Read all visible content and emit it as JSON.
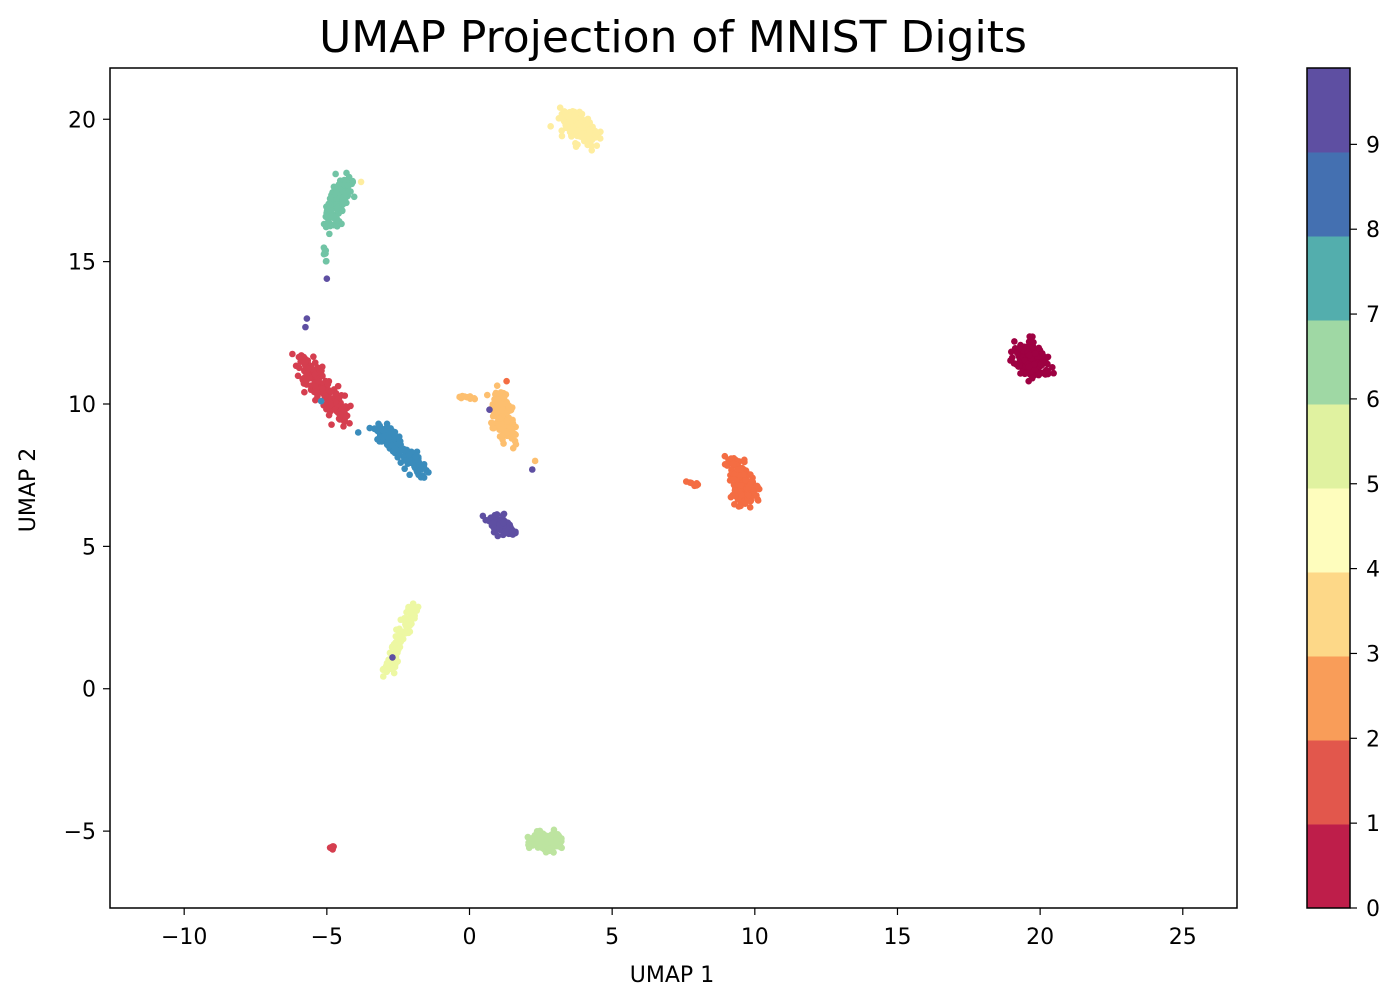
{
  "chart_data": {
    "type": "scatter",
    "title": "UMAP Projection of MNIST Digits",
    "xlabel": "UMAP 1",
    "ylabel": "UMAP 2",
    "xlim": [
      -12.6,
      26.9
    ],
    "ylim": [
      -7.7,
      21.8
    ],
    "xticks": [
      -10,
      -5,
      0,
      5,
      10,
      15,
      20,
      25
    ],
    "xtick_labels": [
      "−10",
      "−5",
      "0",
      "5",
      "10",
      "15",
      "20",
      "25"
    ],
    "yticks": [
      -5,
      0,
      5,
      10,
      15,
      20
    ],
    "ytick_labels": [
      "−5",
      "0",
      "5",
      "10",
      "15",
      "20"
    ],
    "grid": false,
    "colormap": "Spectral",
    "colorbar": {
      "ticks": [
        0,
        1,
        2,
        3,
        4,
        5,
        6,
        7,
        8,
        9
      ],
      "tick_labels": [
        "0",
        "1",
        "2",
        "3",
        "4",
        "5",
        "6",
        "7",
        "8",
        "9"
      ],
      "range": [
        0,
        9.9
      ],
      "band_colors": [
        "#be1e4a",
        "#e2574c",
        "#f99d59",
        "#fdd888",
        "#fefdbd",
        "#e0f2a0",
        "#9fd8a4",
        "#53aead",
        "#4470b1",
        "#5e4fa2"
      ]
    },
    "label_colors": [
      "#9e0142",
      "#d53e4f",
      "#f46d43",
      "#fdbf6f",
      "#feed9f",
      "#edf8a3",
      "#bde4a0",
      "#71c4a5",
      "#3a8cbc",
      "#5e4fa2"
    ],
    "clusters": [
      {
        "label": 0,
        "from": [
          19.5,
          11.9
        ],
        "to": [
          19.9,
          11.2
        ],
        "spread": [
          0.45,
          0.35
        ],
        "n": 220
      },
      {
        "label": 1,
        "from": [
          -5.9,
          11.6
        ],
        "to": [
          -4.4,
          9.5
        ],
        "spread": [
          0.3,
          0.3
        ],
        "n": 160
      },
      {
        "label": 1,
        "from": [
          -4.95,
          -5.7
        ],
        "to": [
          -4.75,
          -5.5
        ],
        "spread": [
          0.05,
          0.05
        ],
        "n": 8
      },
      {
        "label": 2,
        "from": [
          9.3,
          8.0
        ],
        "to": [
          9.7,
          6.6
        ],
        "spread": [
          0.35,
          0.25
        ],
        "n": 150
      },
      {
        "label": 2,
        "from": [
          7.6,
          7.25
        ],
        "to": [
          8.0,
          7.15
        ],
        "spread": [
          0.05,
          0.05
        ],
        "n": 8
      },
      {
        "label": 3,
        "from": [
          1.0,
          10.3
        ],
        "to": [
          1.3,
          8.9
        ],
        "spread": [
          0.3,
          0.3
        ],
        "n": 150
      },
      {
        "label": 3,
        "from": [
          -0.4,
          10.3
        ],
        "to": [
          0.2,
          10.2
        ],
        "spread": [
          0.05,
          0.06
        ],
        "n": 10
      },
      {
        "label": 4,
        "from": [
          3.4,
          20.1
        ],
        "to": [
          4.3,
          19.3
        ],
        "spread": [
          0.35,
          0.3
        ],
        "n": 180
      },
      {
        "label": 5,
        "from": [
          -1.9,
          3.0
        ],
        "to": [
          -2.9,
          0.6
        ],
        "spread": [
          0.2,
          0.15
        ],
        "n": 120
      },
      {
        "label": 6,
        "from": [
          2.3,
          -5.4
        ],
        "to": [
          3.1,
          -5.4
        ],
        "spread": [
          0.3,
          0.25
        ],
        "n": 160
      },
      {
        "label": 7,
        "from": [
          -4.3,
          17.8
        ],
        "to": [
          -4.9,
          16.4
        ],
        "spread": [
          0.25,
          0.3
        ],
        "n": 150
      },
      {
        "label": 7,
        "from": [
          -5.1,
          15.6
        ],
        "to": [
          -5.0,
          14.7
        ],
        "spread": [
          0.05,
          0.1
        ],
        "n": 10
      },
      {
        "label": 8,
        "from": [
          -3.2,
          9.2
        ],
        "to": [
          -1.6,
          7.6
        ],
        "spread": [
          0.25,
          0.25
        ],
        "n": 150
      },
      {
        "label": 9,
        "from": [
          0.8,
          5.9
        ],
        "to": [
          1.4,
          5.6
        ],
        "spread": [
          0.25,
          0.2
        ],
        "n": 140
      }
    ],
    "points": [
      {
        "x": -5.7,
        "y": 13.0,
        "label": 9
      },
      {
        "x": -5.75,
        "y": 12.7,
        "label": 9
      },
      {
        "x": -5.0,
        "y": 14.4,
        "label": 9
      },
      {
        "x": -2.7,
        "y": 1.1,
        "label": 9
      },
      {
        "x": 0.7,
        "y": 9.8,
        "label": 9
      },
      {
        "x": 2.2,
        "y": 7.7,
        "label": 9
      },
      {
        "x": -3.8,
        "y": 17.8,
        "label": 4
      },
      {
        "x": 2.3,
        "y": 8.0,
        "label": 3
      },
      {
        "x": -3.9,
        "y": 9.0,
        "label": 8
      },
      {
        "x": -5.2,
        "y": 10.1,
        "label": 8
      },
      {
        "x": -5.3,
        "y": 10.8,
        "label": 1
      },
      {
        "x": 1.3,
        "y": 10.8,
        "label": 2
      }
    ]
  }
}
